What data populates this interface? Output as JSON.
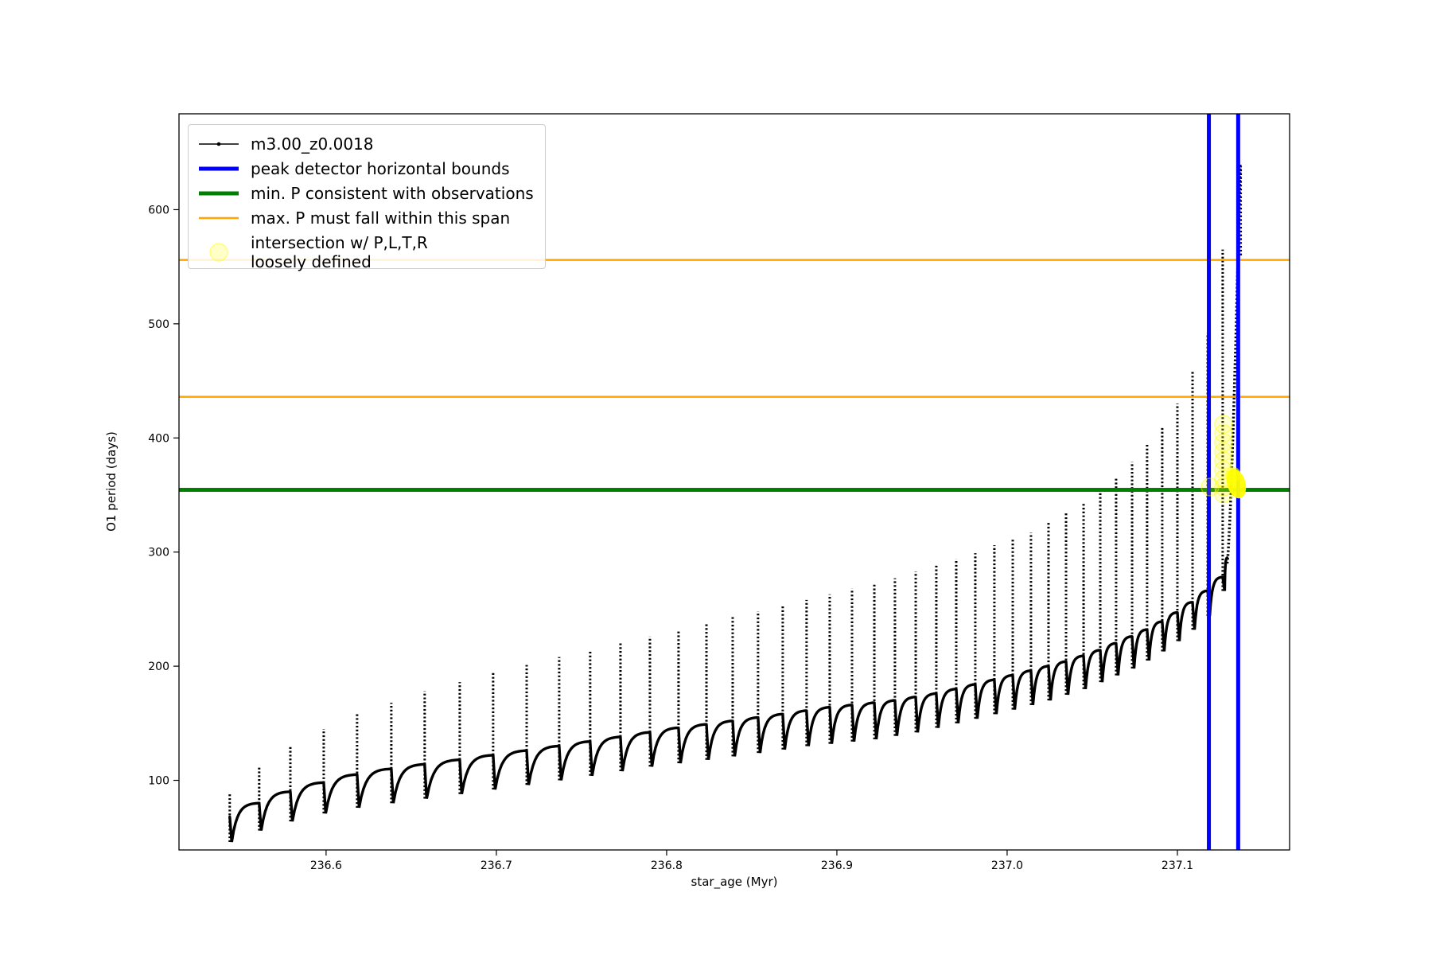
{
  "figure": {
    "background": "#ffffff"
  },
  "chart_data": {
    "type": "line",
    "title": "",
    "xlabel": "star_age (Myr)",
    "ylabel": "O1 period (days)",
    "xlim": [
      236.5136,
      237.1659
    ],
    "ylim": [
      39,
      684
    ],
    "grid": false,
    "xticks": [
      {
        "v": 236.6,
        "label": "236.6"
      },
      {
        "v": 236.7,
        "label": "236.7"
      },
      {
        "v": 236.8,
        "label": "236.8"
      },
      {
        "v": 236.9,
        "label": "236.9"
      },
      {
        "v": 237.0,
        "label": "237.0"
      },
      {
        "v": 237.1,
        "label": "237.1"
      }
    ],
    "yticks": [
      {
        "v": 100,
        "label": "100"
      },
      {
        "v": 200,
        "label": "200"
      },
      {
        "v": 300,
        "label": "300"
      },
      {
        "v": 400,
        "label": "400"
      },
      {
        "v": 500,
        "label": "500"
      },
      {
        "v": 600,
        "label": "600"
      }
    ],
    "legend": {
      "position": "upper left",
      "entries": [
        {
          "label": "m3.00_z0.0018",
          "type": "line-marker",
          "color": "#000000"
        },
        {
          "label": "peak detector horizontal bounds",
          "type": "line-thick",
          "color": "#0000ff"
        },
        {
          "label": "min. P consistent with observations",
          "type": "line-thick",
          "color": "#008000"
        },
        {
          "label": "max. P must fall within this span",
          "type": "line",
          "color": "#ffa500"
        },
        {
          "label": "intersection w/ P,L,T,R\nloosely defined",
          "type": "marker",
          "color": "#ffff00"
        }
      ]
    },
    "series_name": "m3.00_z0.0018",
    "series_color": "#000000",
    "pulses": [
      {
        "t": 236.5434,
        "peak": 88,
        "foot": 68,
        "dip": 46
      },
      {
        "t": 236.5607,
        "peak": 112,
        "foot": 80,
        "dip": 56
      },
      {
        "t": 236.579,
        "peak": 130,
        "foot": 90,
        "dip": 64
      },
      {
        "t": 236.5986,
        "peak": 145,
        "foot": 98,
        "dip": 71
      },
      {
        "t": 236.6182,
        "peak": 158,
        "foot": 105,
        "dip": 76
      },
      {
        "t": 236.6383,
        "peak": 168,
        "foot": 110,
        "dip": 80
      },
      {
        "t": 236.6579,
        "peak": 178,
        "foot": 114,
        "dip": 84
      },
      {
        "t": 236.6785,
        "peak": 186,
        "foot": 118,
        "dip": 88
      },
      {
        "t": 236.6981,
        "peak": 194,
        "foot": 122,
        "dip": 92
      },
      {
        "t": 236.7178,
        "peak": 201,
        "foot": 126,
        "dip": 96
      },
      {
        "t": 236.7369,
        "peak": 208,
        "foot": 130,
        "dip": 100
      },
      {
        "t": 236.7551,
        "peak": 214,
        "foot": 134,
        "dip": 104
      },
      {
        "t": 236.7729,
        "peak": 220,
        "foot": 138,
        "dip": 108
      },
      {
        "t": 236.7902,
        "peak": 226,
        "foot": 142,
        "dip": 112
      },
      {
        "t": 236.807,
        "peak": 232,
        "foot": 146,
        "dip": 115
      },
      {
        "t": 236.8234,
        "peak": 238,
        "foot": 149,
        "dip": 118
      },
      {
        "t": 236.8388,
        "peak": 243,
        "foot": 152,
        "dip": 121
      },
      {
        "t": 236.8537,
        "peak": 248,
        "foot": 155,
        "dip": 124
      },
      {
        "t": 236.8682,
        "peak": 253,
        "foot": 158,
        "dip": 127
      },
      {
        "t": 236.8822,
        "peak": 258,
        "foot": 161,
        "dip": 130
      },
      {
        "t": 236.8958,
        "peak": 263,
        "foot": 164,
        "dip": 132
      },
      {
        "t": 236.9089,
        "peak": 268,
        "foot": 166,
        "dip": 134
      },
      {
        "t": 236.922,
        "peak": 273,
        "foot": 168,
        "dip": 136
      },
      {
        "t": 236.9341,
        "peak": 277,
        "foot": 170,
        "dip": 139
      },
      {
        "t": 236.9463,
        "peak": 283,
        "foot": 173,
        "dip": 142
      },
      {
        "t": 236.9584,
        "peak": 288,
        "foot": 176,
        "dip": 146
      },
      {
        "t": 236.9701,
        "peak": 294,
        "foot": 180,
        "dip": 150
      },
      {
        "t": 236.9813,
        "peak": 299,
        "foot": 184,
        "dip": 154
      },
      {
        "t": 236.9925,
        "peak": 306,
        "foot": 188,
        "dip": 158
      },
      {
        "t": 237.0033,
        "peak": 312,
        "foot": 192,
        "dip": 162
      },
      {
        "t": 237.014,
        "peak": 317,
        "foot": 196,
        "dip": 166
      },
      {
        "t": 237.0243,
        "peak": 327,
        "foot": 200,
        "dip": 170
      },
      {
        "t": 237.0346,
        "peak": 335,
        "foot": 204,
        "dip": 175
      },
      {
        "t": 237.0449,
        "peak": 343,
        "foot": 209,
        "dip": 180
      },
      {
        "t": 237.0547,
        "peak": 352,
        "foot": 214,
        "dip": 186
      },
      {
        "t": 237.064,
        "peak": 365,
        "foot": 220,
        "dip": 192
      },
      {
        "t": 237.0734,
        "peak": 379,
        "foot": 226,
        "dip": 198
      },
      {
        "t": 237.0822,
        "peak": 394,
        "foot": 232,
        "dip": 205
      },
      {
        "t": 237.0911,
        "peak": 410,
        "foot": 239,
        "dip": 213
      },
      {
        "t": 237.1,
        "peak": 430,
        "foot": 247,
        "dip": 222
      },
      {
        "t": 237.1089,
        "peak": 459,
        "foot": 256,
        "dip": 232
      },
      {
        "t": 237.1178,
        "peak": 492,
        "foot": 266,
        "dip": 244
      },
      {
        "t": 237.1266,
        "peak": 565,
        "foot": 278,
        "dip": 266
      }
    ],
    "final_plateau": 295,
    "final_rise": {
      "t_start": 237.1292,
      "t_end": 237.1369,
      "P_start": 290,
      "P_end": 640,
      "shape_exp": 1.4
    },
    "final_scatter": [
      {
        "t": 237.1372,
        "P_min": 560,
        "P_max": 638
      },
      {
        "t": 237.136,
        "P_min": 505,
        "P_max": 575
      }
    ],
    "hlines": [
      {
        "P": 556,
        "color": "#ffa500",
        "lw": 2.5,
        "role": "max-P-span-upper"
      },
      {
        "P": 436,
        "color": "#ffa500",
        "lw": 2.5,
        "role": "max-P-span-lower"
      },
      {
        "P": 354.5,
        "color": "#008000",
        "lw": 5,
        "role": "min-P-consistent"
      }
    ],
    "vlines": [
      {
        "t": 237.1185,
        "color": "#0000ff",
        "lw": 5,
        "role": "peak-detector-left-bound"
      },
      {
        "t": 237.1357,
        "color": "#0000ff",
        "lw": 5,
        "role": "peak-detector-right-bound"
      }
    ],
    "intersection_markers": {
      "color": "#ffff00",
      "faint": [
        {
          "t": 237.1192,
          "P": 357
        },
        {
          "t": 237.1271,
          "P": 412
        },
        {
          "t": 237.1271,
          "P": 404
        },
        {
          "t": 237.1271,
          "P": 396
        },
        {
          "t": 237.1271,
          "P": 388
        },
        {
          "t": 237.1271,
          "P": 380
        },
        {
          "t": 237.1271,
          "P": 372
        },
        {
          "t": 237.1271,
          "P": 364
        },
        {
          "t": 237.1271,
          "P": 357
        },
        {
          "t": 237.1271,
          "P": 351
        }
      ],
      "blob": {
        "t": 237.1346,
        "P": 360
      }
    }
  }
}
